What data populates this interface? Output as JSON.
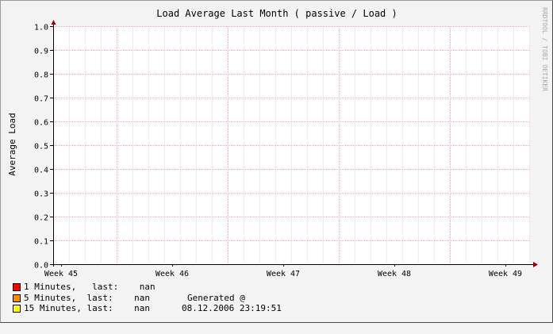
{
  "chart_data": {
    "type": "line",
    "title": "Load Average Last Month ( passive / Load )",
    "ylabel": "Average Load",
    "xlabel": "",
    "ylim": [
      0.0,
      1.0
    ],
    "yticks": [
      "0.0",
      "0.1",
      "0.2",
      "0.3",
      "0.4",
      "0.5",
      "0.6",
      "0.7",
      "0.8",
      "0.9",
      "1.0"
    ],
    "xticks": [
      "Week 45",
      "Week 46",
      "Week 47",
      "Week 48",
      "Week 49"
    ],
    "grid": true,
    "series": [
      {
        "name": "1 Minutes",
        "last": "nan",
        "color": "#ff0000",
        "values": []
      },
      {
        "name": "5 Minutes",
        "last": "nan",
        "color": "#ff8c00",
        "values": []
      },
      {
        "name": "15 Minutes",
        "last": "nan",
        "color": "#ffff00",
        "values": []
      }
    ],
    "watermark": "RRDTOOL / TOBI OETIKER"
  },
  "legend": {
    "row1": "1 Minutes,   last:    nan",
    "row2": "5 Minutes,  last:    nan",
    "row3": "15 Minutes, last:    nan",
    "generated_label": "Generated @",
    "generated_time": "08.12.2006 23:19:51"
  },
  "colors": {
    "background": "#f3f3f3",
    "plot": "#ffffff",
    "grid_minor": "#dcdcdc",
    "grid_major": "#f0a0a0",
    "axis": "#000000",
    "arrow": "#990000"
  }
}
